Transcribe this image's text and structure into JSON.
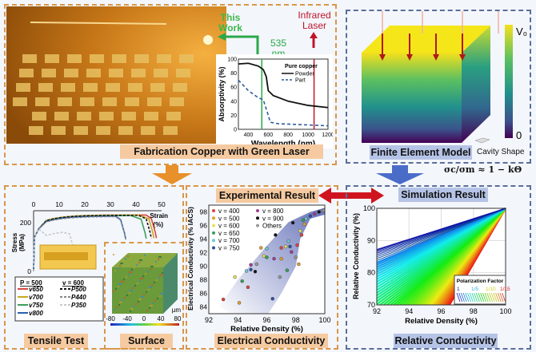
{
  "fabrication": {
    "label": "Fabrication Copper with Green Laser",
    "this_work": "This Work",
    "green_wavelength": "535 nm",
    "infrared": "Infrared Laser"
  },
  "fem": {
    "label": "Finite Element Model",
    "cavity": "Cavity Shape",
    "colorbar_max": "V₀",
    "colorbar_min": "0",
    "formula": "σc/σm ≈ 1 − kΘ"
  },
  "tensile": {
    "label": "Tensile Test",
    "legend_p_title": "P = 500",
    "legend_v_title": "v = 600",
    "surface_label": "Surface",
    "surface_unit": "µm",
    "surface_ticks": [
      "-80",
      "-40",
      "0",
      "40",
      "80"
    ]
  },
  "experimental": {
    "label": "Experimental Result",
    "panel_label": "Electrical Conductivity"
  },
  "simulation": {
    "label": "Simulation Result",
    "panel_label": "Relative Conductivity",
    "legend_title": "Polarization Factor",
    "legend_ticks": [
      "1",
      "1/5",
      "1/10",
      "1/15"
    ]
  },
  "colors": {
    "orange": "#d9964a",
    "blue": "#5b6f9a",
    "green": "#2aa84a",
    "red": "#c0142a"
  },
  "chart_data": [
    {
      "type": "line",
      "title": "",
      "xlabel": "Wavelength (nm)",
      "ylabel": "Absorptivity (%)",
      "xlim": [
        300,
        1200
      ],
      "ylim": [
        0,
        100
      ],
      "xticks": [
        "400",
        "600",
        "800",
        "1000",
        "1200"
      ],
      "yticks": [
        "0",
        "20",
        "40",
        "60",
        "80",
        "100"
      ],
      "legend_title": "Pure copper",
      "legend": "top-right",
      "series": [
        {
          "name": "Powder",
          "style": "solid",
          "x": [
            300,
            400,
            500,
            550,
            580,
            600,
            650,
            800,
            1000,
            1200
          ],
          "y": [
            93,
            94,
            90,
            85,
            75,
            55,
            48,
            40,
            34,
            31
          ]
        },
        {
          "name": "Part",
          "style": "dashed",
          "x": [
            300,
            400,
            500,
            550,
            600,
            620,
            700,
            1200
          ],
          "y": [
            70,
            55,
            45,
            42,
            20,
            10,
            8,
            5
          ]
        }
      ],
      "vlines": [
        {
          "x": 535,
          "color": "#2aa84a"
        },
        {
          "x": 1060,
          "color": "#c0142a"
        }
      ]
    },
    {
      "type": "line",
      "xlabel": "Strain (%)",
      "ylabel": "Stress (MPa)",
      "xlim": [
        0,
        50
      ],
      "ylim": [
        0,
        230
      ],
      "xticks": [
        "0",
        "10",
        "20",
        "30",
        "40",
        "50"
      ],
      "yticks": [
        "0",
        "200"
      ],
      "series": [
        {
          "name": "v650",
          "color": "#d9463f",
          "style": "solid",
          "end_strain": 48,
          "max_stress": 232
        },
        {
          "name": "v700",
          "color": "#c9a81e",
          "style": "solid",
          "end_strain": 47,
          "max_stress": 232
        },
        {
          "name": "v750",
          "color": "#3a9e5a",
          "style": "solid",
          "end_strain": 44,
          "max_stress": 230
        },
        {
          "name": "v800",
          "color": "#2860b0",
          "style": "solid",
          "end_strain": 36,
          "max_stress": 228
        },
        {
          "name": "P500",
          "color": "#111111",
          "style": "dashed",
          "end_strain": 46,
          "max_stress": 231
        },
        {
          "name": "P440",
          "color": "#888888",
          "style": "dashed",
          "end_strain": 36,
          "max_stress": 226
        },
        {
          "name": "P350",
          "color": "#c8c8c8",
          "style": "dashed",
          "end_strain": 16,
          "max_stress": 170
        }
      ]
    },
    {
      "type": "scatter",
      "xlabel": "Relative Density (%)",
      "ylabel": "Electrical Conductivity (% IACS)",
      "xlim": [
        92,
        100
      ],
      "ylim": [
        83,
        99
      ],
      "xticks": [
        "92",
        "94",
        "96",
        "98",
        "100"
      ],
      "yticks": [
        "84",
        "86",
        "88",
        "90",
        "92",
        "94",
        "96",
        "98"
      ],
      "legend": "top-left",
      "legend_entries": [
        "v = 400",
        "v = 500",
        "v = 600",
        "v = 650",
        "v = 700",
        "v = 750",
        "v = 800",
        "v = 900",
        "Others"
      ],
      "legend_colors": [
        "#d9463f",
        "#e0a030",
        "#e8e060",
        "#3a9e5a",
        "#70c8d8",
        "#3050a0",
        "#a04090",
        "#111111",
        "#999999"
      ],
      "points": [
        [
          93,
          85.1
        ],
        [
          94.1,
          84.6
        ],
        [
          93.8,
          88.4
        ],
        [
          94.3,
          87.8
        ],
        [
          94.6,
          89.3
        ],
        [
          94.9,
          89.5
        ],
        [
          94.9,
          90.2
        ],
        [
          95.2,
          89.2
        ],
        [
          95.3,
          90.3
        ],
        [
          94.7,
          86.9
        ],
        [
          95.6,
          92.7
        ],
        [
          95.8,
          91.5
        ],
        [
          96,
          91.3
        ],
        [
          96,
          92.6
        ],
        [
          96.4,
          85.2
        ],
        [
          96.5,
          91.1
        ],
        [
          96.6,
          94.6
        ],
        [
          96.9,
          88.4
        ],
        [
          97,
          92.7
        ],
        [
          97,
          91.1
        ],
        [
          97.3,
          92.9
        ],
        [
          97.4,
          89.4
        ],
        [
          97.5,
          93.7
        ],
        [
          97.6,
          92.9
        ],
        [
          97.7,
          92.1
        ],
        [
          97.8,
          96.4
        ],
        [
          98,
          91.3
        ],
        [
          98.1,
          93.1
        ],
        [
          98.2,
          90.3
        ],
        [
          98.3,
          95.2
        ],
        [
          98.5,
          96.8
        ],
        [
          98.7,
          97
        ],
        [
          99,
          97.4
        ],
        [
          99.3,
          97.7
        ],
        [
          99.6,
          98
        ],
        [
          99.9,
          98.2
        ],
        [
          98.4,
          94.6
        ],
        [
          98.6,
          96.2
        ]
      ]
    },
    {
      "type": "line",
      "xlabel": "Relative Density (%)",
      "ylabel": "Relative Conductivity (%)",
      "xlim": [
        92,
        100
      ],
      "ylim": [
        70,
        100
      ],
      "xticks": [
        "92",
        "94",
        "96",
        "98",
        "100"
      ],
      "yticks": [
        "70",
        "80",
        "90",
        "100"
      ],
      "legend": "bottom-right",
      "model": "relative conductivity = 100 - k × (100 - relative density)",
      "k_range": [
        1.6,
        8.6
      ]
    }
  ]
}
